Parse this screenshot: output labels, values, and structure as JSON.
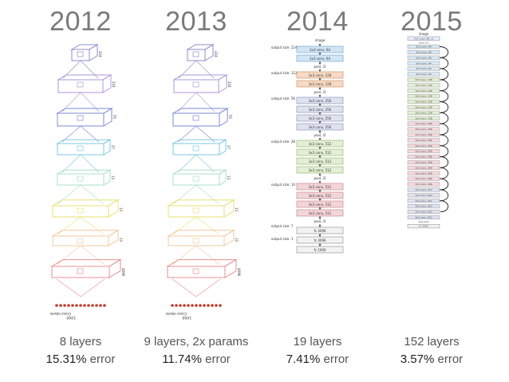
{
  "columns": [
    {
      "year": "2012",
      "layers": "8 layers",
      "error_value": "15.31%",
      "error_word": " error"
    },
    {
      "year": "2013",
      "layers": "9 layers, 2x params",
      "error_value": "11.74%",
      "error_word": " error"
    },
    {
      "year": "2014",
      "layers": "19 layers",
      "error_value": "7.41%",
      "error_word": " error"
    },
    {
      "year": "2015",
      "layers": "152 layers",
      "error_value": "3.57%",
      "error_word": " error"
    }
  ],
  "alexnet": {
    "class_labels": "Class labels",
    "output_count": "1000",
    "dims": [
      "224",
      "224",
      "55",
      "27",
      "13",
      "13",
      "13",
      "4096",
      "4096"
    ],
    "colors": [
      "#8e8ec8",
      "#a89adb",
      "#7d8bd6",
      "#7ec8e3",
      "#a8e0c8",
      "#e8e070",
      "#f0c8a0",
      "#e89090"
    ]
  },
  "vgg": {
    "input_label": "image",
    "blocks": [
      {
        "size_label": "output size: 224",
        "layers": [
          "3x3 conv, 64",
          "3x3 conv, 64"
        ],
        "pool": "pool, /2",
        "color": "#cfe6f5",
        "border": "#6b9cc7"
      },
      {
        "size_label": "output size: 112",
        "layers": [
          "3x3 conv, 128",
          "3x3 conv, 128"
        ],
        "pool": "pool, /2",
        "color": "#f7d9c4",
        "border": "#c98a5c"
      },
      {
        "size_label": "output size: 56",
        "layers": [
          "3x3 conv, 256",
          "3x3 conv, 256",
          "3x3 conv, 256",
          "3x3 conv, 256"
        ],
        "pool": "pool, /2",
        "color": "#dfe3f0",
        "border": "#7f88b0"
      },
      {
        "size_label": "output size: 28",
        "layers": [
          "3x3 conv, 512",
          "3x3 conv, 512",
          "3x3 conv, 512",
          "3x3 conv, 512"
        ],
        "pool": "pool, /2",
        "color": "#e3efd3",
        "border": "#8fae6a"
      },
      {
        "size_label": "output size: 14",
        "layers": [
          "3x3 conv, 512",
          "3x3 conv, 512",
          "3x3 conv, 512",
          "3x3 conv, 512"
        ],
        "pool": "pool, /2",
        "color": "#f3d5d8",
        "border": "#c07a82"
      }
    ],
    "fc_size_label_1": "output size: 7",
    "fc_size_label_2": "output size: 1",
    "fc_layers": [
      "fc 4096",
      "fc 4096",
      "fc 1000"
    ]
  },
  "resnet": {
    "input_label": "image",
    "first_layer": "7x7 conv, 64, /2",
    "pool_label": "pool, /2",
    "avg_pool_label": "avg pool",
    "fc_label": "fc 1000",
    "groups": [
      {
        "label": "3x3 conv, 64",
        "count": 6,
        "color": "#d9e8f5"
      },
      {
        "label": "3x3 conv, 128",
        "count": 8,
        "color": "#e4f0d4"
      },
      {
        "label": "3x3 conv, 256",
        "count": 12,
        "color": "#f5d9dc"
      },
      {
        "label": "3x3 conv, 512",
        "count": 6,
        "color": "#dfe3f0"
      }
    ]
  }
}
